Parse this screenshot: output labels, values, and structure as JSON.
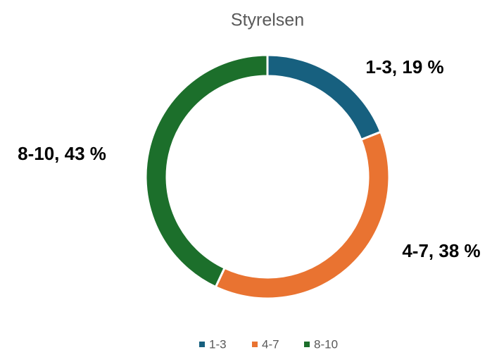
{
  "chart_data": {
    "type": "donut",
    "title": "Styrelsen",
    "series": [
      {
        "name": "Styrelsen",
        "categories": [
          "1-3",
          "4-7",
          "8-10"
        ],
        "values": [
          19,
          38,
          43
        ],
        "value_labels": [
          "1-3, 19 %",
          "4-7, 38 %",
          "8-10, 43 %"
        ],
        "colors": [
          "#17607f",
          "#e97331",
          "#1c6f2b"
        ]
      }
    ],
    "legend": "bottom"
  }
}
